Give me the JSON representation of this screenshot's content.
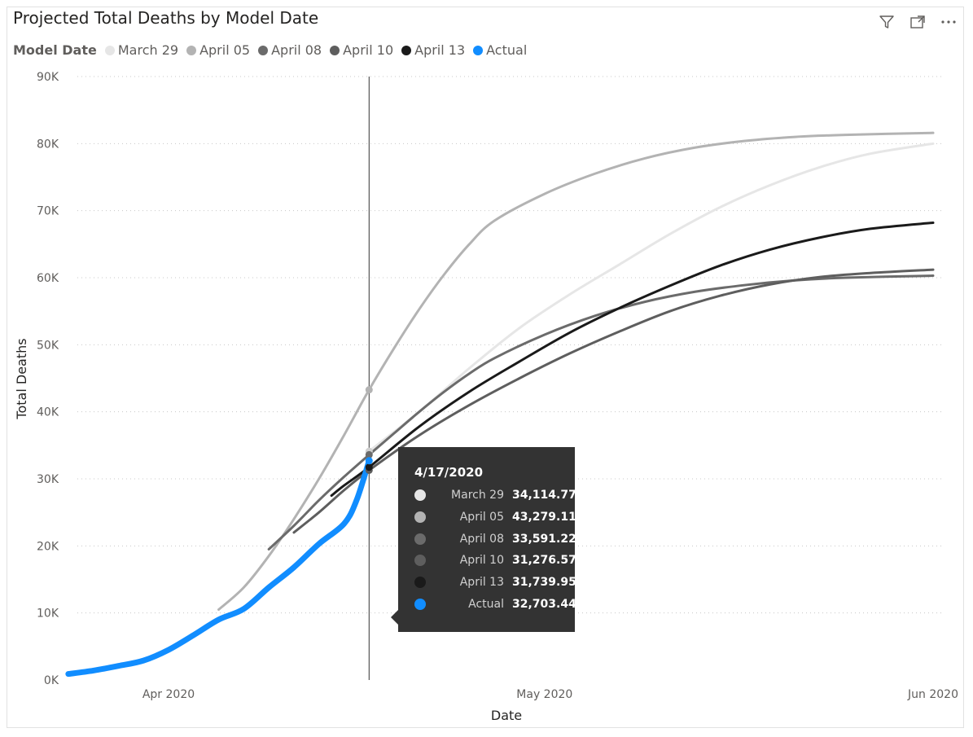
{
  "title": "Projected Total Deaths by Model Date",
  "toolbar": {
    "icons": [
      "filter-icon",
      "focus-mode-icon",
      "more-options-icon"
    ]
  },
  "legend": {
    "title": "Model Date",
    "items": [
      {
        "label": "March 29",
        "color": "#e6e6e6"
      },
      {
        "label": "April 05",
        "color": "#b3b3b3"
      },
      {
        "label": "April 08",
        "color": "#6b6b6b"
      },
      {
        "label": "April 10",
        "color": "#5e5e5e"
      },
      {
        "label": "April 13",
        "color": "#1a1a1a"
      },
      {
        "label": "Actual",
        "color": "#118dff"
      }
    ]
  },
  "chart_data": {
    "type": "line",
    "xlabel": "Date",
    "ylabel": "Total Deaths",
    "xlim": [
      "2020-03-24",
      "2020-06-01"
    ],
    "ylim": [
      0,
      90000
    ],
    "x_ticks": [
      {
        "date": "2020-04-01",
        "label": "Apr 2020"
      },
      {
        "date": "2020-05-01",
        "label": "May 2020"
      },
      {
        "date": "2020-06-01",
        "label": "Jun 2020"
      }
    ],
    "y_ticks": [
      {
        "value": 0,
        "label": "0K"
      },
      {
        "value": 10000,
        "label": "10K"
      },
      {
        "value": 20000,
        "label": "20K"
      },
      {
        "value": 30000,
        "label": "30K"
      },
      {
        "value": 40000,
        "label": "40K"
      },
      {
        "value": 50000,
        "label": "50K"
      },
      {
        "value": 60000,
        "label": "60K"
      },
      {
        "value": 70000,
        "label": "70K"
      },
      {
        "value": 80000,
        "label": "80K"
      },
      {
        "value": 90000,
        "label": "90K"
      }
    ],
    "grid": true,
    "legend_position": "top-left",
    "hover_date": "2020-04-17",
    "series": [
      {
        "name": "March 29",
        "color": "#e6e6e6",
        "width": 3,
        "points": [
          [
            "2020-04-17",
            34114
          ],
          [
            "2020-04-21",
            40000
          ],
          [
            "2020-04-25",
            46500
          ],
          [
            "2020-04-29",
            52500
          ],
          [
            "2020-05-03",
            57500
          ],
          [
            "2020-05-07",
            62000
          ],
          [
            "2020-05-11",
            66500
          ],
          [
            "2020-05-15",
            70500
          ],
          [
            "2020-05-19",
            73800
          ],
          [
            "2020-05-23",
            76500
          ],
          [
            "2020-05-27",
            78500
          ],
          [
            "2020-06-01",
            80000
          ]
        ]
      },
      {
        "name": "April 05",
        "color": "#b3b3b3",
        "width": 3,
        "points": [
          [
            "2020-04-05",
            10500
          ],
          [
            "2020-04-07",
            13800
          ],
          [
            "2020-04-09",
            18500
          ],
          [
            "2020-04-11",
            24000
          ],
          [
            "2020-04-13",
            30000
          ],
          [
            "2020-04-15",
            36500
          ],
          [
            "2020-04-17",
            43279
          ],
          [
            "2020-04-19",
            49500
          ],
          [
            "2020-04-21",
            55300
          ],
          [
            "2020-04-23",
            60500
          ],
          [
            "2020-04-25",
            65000
          ],
          [
            "2020-04-27",
            68500
          ],
          [
            "2020-05-01",
            72500
          ],
          [
            "2020-05-05",
            75500
          ],
          [
            "2020-05-09",
            77800
          ],
          [
            "2020-05-13",
            79400
          ],
          [
            "2020-05-17",
            80400
          ],
          [
            "2020-05-21",
            81000
          ],
          [
            "2020-05-25",
            81300
          ],
          [
            "2020-06-01",
            81600
          ]
        ]
      },
      {
        "name": "April 08",
        "color": "#6b6b6b",
        "width": 3,
        "points": [
          [
            "2020-04-09",
            19500
          ],
          [
            "2020-04-11",
            23000
          ],
          [
            "2020-04-13",
            26800
          ],
          [
            "2020-04-15",
            30300
          ],
          [
            "2020-04-17",
            33591
          ],
          [
            "2020-04-19",
            36800
          ],
          [
            "2020-04-21",
            40000
          ],
          [
            "2020-04-23",
            43000
          ],
          [
            "2020-04-25",
            45700
          ],
          [
            "2020-04-27",
            48000
          ],
          [
            "2020-05-01",
            51500
          ],
          [
            "2020-05-05",
            54300
          ],
          [
            "2020-05-09",
            56400
          ],
          [
            "2020-05-13",
            57900
          ],
          [
            "2020-05-17",
            58900
          ],
          [
            "2020-05-21",
            59600
          ],
          [
            "2020-05-25",
            60000
          ],
          [
            "2020-06-01",
            60300
          ]
        ]
      },
      {
        "name": "April 10",
        "color": "#5e5e5e",
        "width": 3,
        "points": [
          [
            "2020-04-11",
            22000
          ],
          [
            "2020-04-13",
            25000
          ],
          [
            "2020-04-15",
            28300
          ],
          [
            "2020-04-17",
            31277
          ],
          [
            "2020-04-21",
            36500
          ],
          [
            "2020-04-25",
            41000
          ],
          [
            "2020-04-29",
            45000
          ],
          [
            "2020-05-03",
            48700
          ],
          [
            "2020-05-07",
            52000
          ],
          [
            "2020-05-11",
            55000
          ],
          [
            "2020-05-15",
            57300
          ],
          [
            "2020-05-19",
            59000
          ],
          [
            "2020-05-23",
            60100
          ],
          [
            "2020-05-27",
            60700
          ],
          [
            "2020-06-01",
            61200
          ]
        ]
      },
      {
        "name": "April 13",
        "color": "#1a1a1a",
        "width": 3,
        "points": [
          [
            "2020-04-14",
            27500
          ],
          [
            "2020-04-15",
            29000
          ],
          [
            "2020-04-17",
            31740
          ],
          [
            "2020-04-21",
            37800
          ],
          [
            "2020-04-25",
            43000
          ],
          [
            "2020-04-29",
            47500
          ],
          [
            "2020-05-03",
            51800
          ],
          [
            "2020-05-07",
            55500
          ],
          [
            "2020-05-11",
            58800
          ],
          [
            "2020-05-15",
            61800
          ],
          [
            "2020-05-19",
            64200
          ],
          [
            "2020-05-23",
            66000
          ],
          [
            "2020-05-27",
            67300
          ],
          [
            "2020-06-01",
            68200
          ]
        ]
      },
      {
        "name": "Actual",
        "color": "#118dff",
        "width": 7,
        "points": [
          [
            "2020-03-24",
            900
          ],
          [
            "2020-03-26",
            1400
          ],
          [
            "2020-03-28",
            2100
          ],
          [
            "2020-03-30",
            2900
          ],
          [
            "2020-04-01",
            4500
          ],
          [
            "2020-04-03",
            6700
          ],
          [
            "2020-04-05",
            9000
          ],
          [
            "2020-04-07",
            10600
          ],
          [
            "2020-04-09",
            13800
          ],
          [
            "2020-04-11",
            16800
          ],
          [
            "2020-04-13",
            20300
          ],
          [
            "2020-04-15",
            23300
          ],
          [
            "2020-04-16",
            26800
          ],
          [
            "2020-04-17",
            32703
          ]
        ]
      }
    ]
  },
  "tooltip": {
    "date": "4/17/2020",
    "rows": [
      {
        "name": "March 29",
        "value": "34,114.77",
        "color": "#e6e6e6"
      },
      {
        "name": "April 05",
        "value": "43,279.11",
        "color": "#b3b3b3"
      },
      {
        "name": "April 08",
        "value": "33,591.22",
        "color": "#6b6b6b"
      },
      {
        "name": "April 10",
        "value": "31,276.57",
        "color": "#5e5e5e"
      },
      {
        "name": "April 13",
        "value": "31,739.95",
        "color": "#1a1a1a"
      },
      {
        "name": "Actual",
        "value": "32,703.44",
        "color": "#118dff"
      }
    ]
  }
}
